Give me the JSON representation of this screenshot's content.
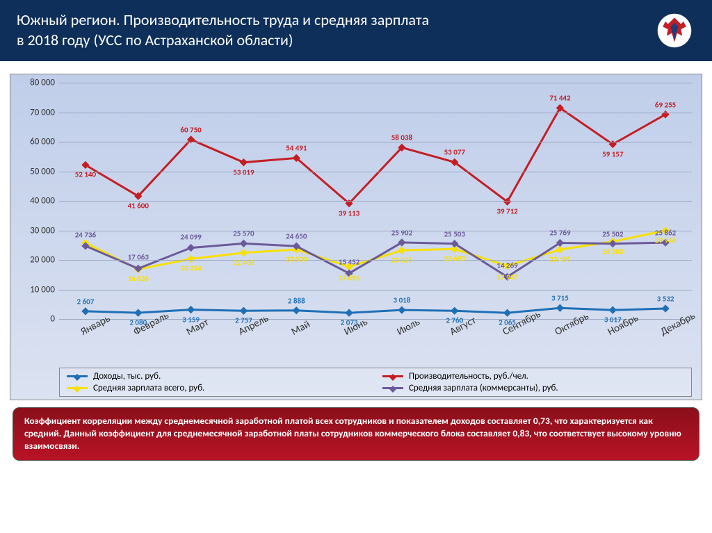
{
  "header": {
    "title_line1": "Южный регион. Производительность труда и средняя зарплата",
    "title_line2": "в 2018 году (УСС по Астраханской области)",
    "title_color": "#ffffff",
    "background_color": "#0e2f5a",
    "emblem_name": "double-eagle-emblem"
  },
  "chart": {
    "type": "line",
    "background_gradient": [
      "#c0ceea",
      "#dbe2f1"
    ],
    "grid_color": "#9aa7c0",
    "axis_fontsize": 13,
    "xlabel_fontsize": 15,
    "xlabel_rotation_deg": -28,
    "datalabel_fontsize": 11,
    "ylim": [
      0,
      80000
    ],
    "ytick_step": 10000,
    "yticks": [
      "0",
      "10 000",
      "20 000",
      "30 000",
      "40 000",
      "50 000",
      "60 000",
      "70 000",
      "80 000"
    ],
    "categories": [
      "Январь",
      "Февраль",
      "Март",
      "Апрель",
      "Май",
      "Июнь",
      "Июль",
      "Август",
      "Сентябрь",
      "Октябрь",
      "Ноябрь",
      "Декабрь"
    ],
    "series": [
      {
        "key": "income",
        "name": "Доходы, тыс. руб.",
        "color": "#1f6fb5",
        "marker": "diamond",
        "line_width": 3,
        "values": [
          2607,
          2080,
          3159,
          2757,
          2888,
          2073,
          3018,
          2760,
          2065,
          3715,
          3017,
          3532
        ],
        "labels": [
          "2 607",
          "2 080",
          "3 159",
          "2 757",
          "2 888",
          "2 073",
          "3 018",
          "2 760",
          "2 065",
          "3 715",
          "3 017",
          "3 532"
        ],
        "label_offset": [
          14,
          -14,
          -14,
          -14,
          14,
          -14,
          14,
          -14,
          -14,
          14,
          -14,
          14
        ]
      },
      {
        "key": "productivity",
        "name": "Производительность, руб./чел.",
        "color": "#c41e24",
        "marker": "diamond",
        "line_width": 3,
        "values": [
          52140,
          41600,
          60750,
          53019,
          54491,
          39113,
          58038,
          53077,
          39712,
          71442,
          59157,
          69255
        ],
        "labels": [
          "52 140",
          "41 600",
          "60 750",
          "53 019",
          "54 491",
          "39 113",
          "58 038",
          "53 077",
          "39 712",
          "71 442",
          "59 157",
          "69 255"
        ],
        "label_offset": [
          -14,
          -14,
          14,
          -14,
          14,
          -14,
          14,
          14,
          -14,
          14,
          -14,
          14
        ]
      },
      {
        "key": "avg_salary_all",
        "name": "Средняя зарплата всего, руб.",
        "color": "#f8e000",
        "marker": "diamond",
        "line_width": 3,
        "values": [
          25724,
          16836,
          20354,
          22406,
          23530,
          17691,
          23225,
          23693,
          17947,
          23496,
          26203,
          29946
        ],
        "labels": [
          "",
          "16 836",
          "20 354",
          "22 406",
          "23 530",
          "17 691",
          "23 225",
          "23 693",
          "17 947",
          "23 496",
          "26 203",
          "29 946"
        ],
        "label_offset": [
          0,
          -14,
          -14,
          -14,
          -14,
          -16,
          -14,
          -14,
          -16,
          -14,
          -14,
          -14
        ]
      },
      {
        "key": "avg_salary_comm",
        "name": "Средняя зарплата (коммерсанты), руб.",
        "color": "#6a5a9a",
        "marker": "diamond",
        "line_width": 3,
        "values": [
          24736,
          17063,
          24099,
          25570,
          24650,
          15452,
          25902,
          25503,
          14269,
          25769,
          25502,
          25862
        ],
        "labels": [
          "24 736",
          "17 063",
          "24 099",
          "25 570",
          "24 650",
          "15 452",
          "25 902",
          "25 503",
          "14 269",
          "25 769",
          "25 502",
          "25 862"
        ],
        "label_offset": [
          16,
          16,
          16,
          14,
          14,
          16,
          14,
          14,
          16,
          14,
          14,
          14
        ]
      }
    ],
    "legend": {
      "position": "bottom",
      "border_color": "#888888"
    }
  },
  "footer": {
    "text": "Коэффициент корреляции между среднемесячной заработной платой всех сотрудников и показателем доходов составляет 0,73, что характеризуется как средний. Данный коэффициент для среднемесячной заработной платы сотрудников коммерческого блока составляет 0,83, что соответствует высокому уровню взаимосвязи.",
    "background_gradient": [
      "#8a0f1a",
      "#b91326"
    ],
    "text_color": "#ffffff",
    "fontsize": 13.5
  }
}
